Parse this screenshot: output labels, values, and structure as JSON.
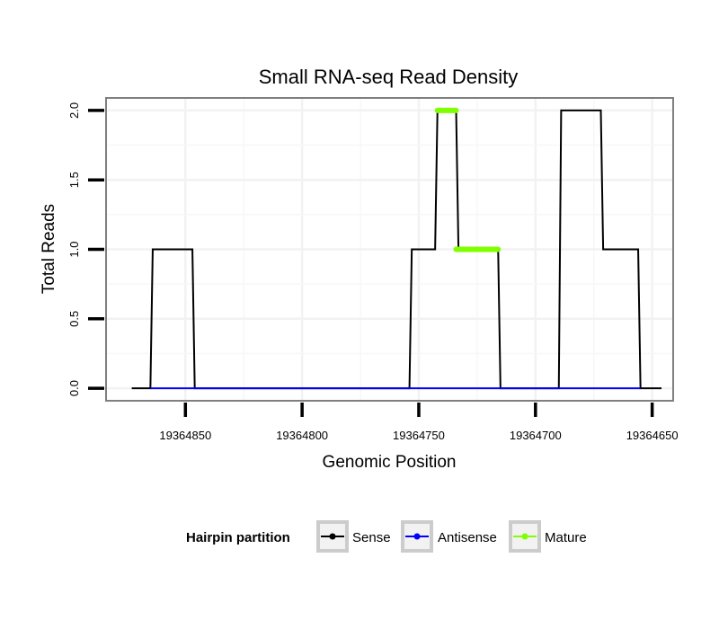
{
  "chart_data": {
    "type": "line",
    "title": "Small RNA-seq Read Density",
    "xlabel": "Genomic Position",
    "ylabel": "Total Reads",
    "x_reversed": true,
    "xlim": [
      19364884,
      19364641
    ],
    "ylim": [
      -0.09,
      2.09
    ],
    "x_ticks": [
      19364850,
      19364800,
      19364750,
      19364700,
      19364650
    ],
    "x_tick_labels": [
      "19364850",
      "19364800",
      "19364750",
      "19364700",
      "19364650"
    ],
    "y_ticks": [
      0,
      0.5,
      1,
      1.5,
      2
    ],
    "y_tick_labels": [
      "0.0",
      "0.5",
      "1.0",
      "1.5",
      "2.0"
    ],
    "grid": true,
    "series": [
      {
        "name": "Sense",
        "color": "#000000",
        "x": [
          19364873,
          19364865,
          19364864,
          19364847,
          19364846,
          19364754,
          19364753,
          19364743,
          19364742,
          19364734,
          19364733,
          19364716,
          19364715,
          19364690,
          19364689,
          19364672,
          19364671,
          19364656,
          19364655,
          19364646
        ],
        "y": [
          0,
          0,
          1,
          1,
          0,
          0,
          1,
          1,
          2,
          2,
          1,
          1,
          0,
          0,
          2,
          2,
          1,
          1,
          0,
          0
        ]
      },
      {
        "name": "Antisense",
        "color": "#0000ff",
        "x": [
          19364865,
          19364846,
          19364754,
          19364716,
          19364690,
          19364655
        ],
        "y": [
          0,
          0,
          0,
          0,
          0,
          0
        ]
      },
      {
        "name": "Mature",
        "color": "#7fff00",
        "segments": [
          {
            "x": [
              19364742,
              19364734
            ],
            "y": [
              2,
              2
            ]
          },
          {
            "x": [
              19364734,
              19364716
            ],
            "y": [
              1,
              1
            ]
          }
        ]
      }
    ],
    "legend": {
      "title": "Hairpin partition",
      "position": "bottom",
      "entries": [
        {
          "label": "Sense",
          "color": "#000000"
        },
        {
          "label": "Antisense",
          "color": "#0000ff"
        },
        {
          "label": "Mature",
          "color": "#7fff00"
        }
      ]
    }
  }
}
